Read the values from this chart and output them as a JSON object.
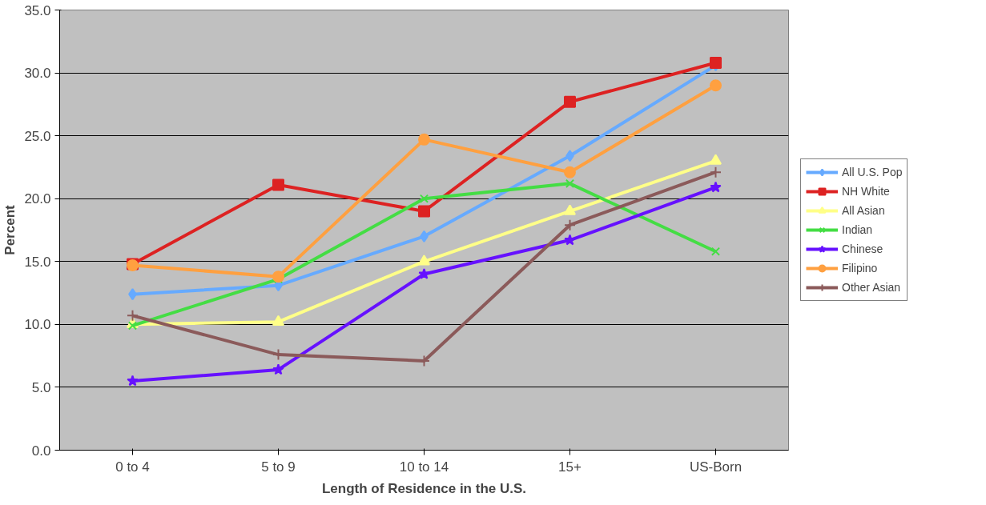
{
  "chart_data": {
    "type": "line",
    "xlabel": "Length of Residence in the U.S.",
    "ylabel": "Percent",
    "categories": [
      "0 to 4",
      "5 to 9",
      "10 to 14",
      "15+",
      "US-Born"
    ],
    "ylim": [
      0,
      35
    ],
    "yticks": [
      {
        "value": 0,
        "label": "0.0"
      },
      {
        "value": 5,
        "label": "5.0"
      },
      {
        "value": 10,
        "label": "10.0"
      },
      {
        "value": 15,
        "label": "15.0"
      },
      {
        "value": 20,
        "label": "20.0"
      },
      {
        "value": 25,
        "label": "25.0"
      },
      {
        "value": 30,
        "label": "30.0"
      },
      {
        "value": 35,
        "label": "35.0"
      }
    ],
    "grid": "y",
    "legend": "right",
    "line_style": "solid",
    "series": [
      {
        "name": "All U.S. Pop",
        "color": "#66aaff",
        "marker": "diamond",
        "values": [
          12.4,
          13.1,
          17.0,
          23.4,
          30.6
        ]
      },
      {
        "name": "NH White",
        "color": "#dd2222",
        "marker": "square",
        "values": [
          14.8,
          21.1,
          19.0,
          27.7,
          30.8
        ]
      },
      {
        "name": "All Asian",
        "color": "#ffff88",
        "marker": "triangle",
        "values": [
          10.0,
          10.2,
          15.0,
          19.0,
          23.0
        ]
      },
      {
        "name": "Indian",
        "color": "#44dd44",
        "marker": "x",
        "values": [
          9.9,
          13.6,
          20.0,
          21.2,
          15.8
        ]
      },
      {
        "name": "Chinese",
        "color": "#6611ff",
        "marker": "star",
        "values": [
          5.5,
          6.4,
          14.0,
          16.7,
          20.9
        ]
      },
      {
        "name": "Filipino",
        "color": "#ffa040",
        "marker": "circle",
        "values": [
          14.7,
          13.8,
          24.7,
          22.1,
          29.0
        ]
      },
      {
        "name": "Other Asian",
        "color": "#8b5a5a",
        "marker": "cross",
        "values": [
          10.7,
          7.6,
          7.1,
          17.9,
          22.1
        ]
      }
    ]
  }
}
